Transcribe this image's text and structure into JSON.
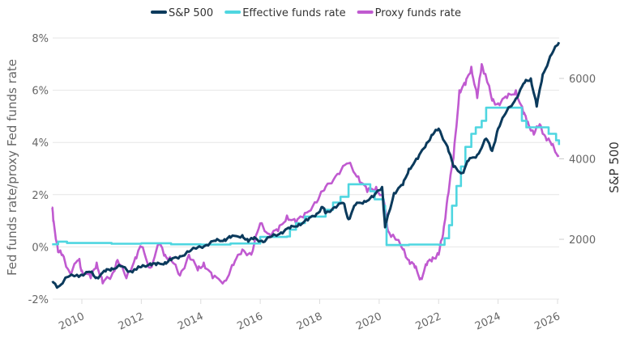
{
  "chart_data": {
    "type": "line",
    "title": "",
    "legend": {
      "placement": "top-center",
      "entries": [
        {
          "name": "S&P 500",
          "color": "#0b3a5c"
        },
        {
          "name": "Effective funds rate",
          "color": "#4fd6e0"
        },
        {
          "name": "Proxy funds rate",
          "color": "#c05ad0"
        }
      ]
    },
    "xlabel": "",
    "ylabel": "Fed funds rate/proxy Fed funds rate",
    "y2label": "S&P 500",
    "xlim": [
      2009.0,
      2026.1
    ],
    "ylim": [
      -2,
      8
    ],
    "y2lim": [
      650,
      7200
    ],
    "x_ticks": [
      "2010",
      "2012",
      "2014",
      "2016",
      "2018",
      "2020",
      "2022",
      "2024",
      "2026"
    ],
    "y_ticks": [
      "-2%",
      "0%",
      "2%",
      "4%",
      "6%",
      "8%"
    ],
    "y2_ticks": [
      "2000",
      "4000",
      "6000"
    ],
    "grid": true,
    "series": [
      {
        "name": "S&P 500",
        "axis": "right",
        "color": "#0b3a5c",
        "x": [
          2009.0,
          2009.2,
          2009.5,
          2009.8,
          2010.0,
          2010.3,
          2010.5,
          2010.8,
          2011.0,
          2011.3,
          2011.6,
          2011.8,
          2012.0,
          2012.3,
          2012.5,
          2012.8,
          2013.0,
          2013.3,
          2013.6,
          2013.9,
          2014.2,
          2014.5,
          2014.8,
          2015.0,
          2015.4,
          2015.6,
          2015.8,
          2016.1,
          2016.4,
          2016.7,
          2017.0,
          2017.3,
          2017.6,
          2017.9,
          2018.1,
          2018.2,
          2018.5,
          2018.8,
          2018.97,
          2019.2,
          2019.5,
          2019.8,
          2020.1,
          2020.2,
          2020.25,
          2020.5,
          2020.8,
          2021.0,
          2021.3,
          2021.6,
          2021.8,
          2022.0,
          2022.3,
          2022.5,
          2022.8,
          2023.0,
          2023.3,
          2023.6,
          2023.8,
          2024.0,
          2024.3,
          2024.6,
          2024.9,
          2025.1,
          2025.3,
          2025.5,
          2025.8,
          2026.05
        ],
        "values": [
          920,
          820,
          1060,
          1100,
          1120,
          1180,
          1050,
          1200,
          1280,
          1330,
          1200,
          1250,
          1310,
          1400,
          1360,
          1430,
          1480,
          1580,
          1690,
          1800,
          1860,
          1960,
          2000,
          2040,
          2100,
          1940,
          2050,
          1930,
          2080,
          2170,
          2270,
          2380,
          2470,
          2640,
          2800,
          2650,
          2800,
          2900,
          2500,
          2850,
          2950,
          3050,
          3300,
          2300,
          2450,
          3150,
          3350,
          3750,
          4000,
          4400,
          4600,
          4750,
          4300,
          3800,
          3650,
          3950,
          4100,
          4500,
          4200,
          4750,
          5200,
          5500,
          5900,
          6000,
          5300,
          6100,
          6600,
          6900
        ]
      },
      {
        "name": "Effective funds rate",
        "axis": "left",
        "color": "#4fd6e0",
        "x": [
          2009.0,
          2009.2,
          2009.5,
          2010.0,
          2011.0,
          2012.0,
          2013.0,
          2014.0,
          2015.0,
          2015.95,
          2016.0,
          2016.9,
          2017.0,
          2017.2,
          2017.5,
          2017.95,
          2018.2,
          2018.45,
          2018.7,
          2018.97,
          2019.55,
          2019.7,
          2019.85,
          2020.15,
          2020.2,
          2020.25,
          2021.0,
          2022.0,
          2022.2,
          2022.35,
          2022.45,
          2022.6,
          2022.75,
          2022.9,
          2023.1,
          2023.25,
          2023.45,
          2023.6,
          2024.2,
          2024.7,
          2024.8,
          2024.95,
          2025.7,
          2025.95,
          2026.05
        ],
        "values": [
          0.1,
          0.2,
          0.15,
          0.15,
          0.12,
          0.14,
          0.1,
          0.09,
          0.13,
          0.13,
          0.38,
          0.4,
          0.66,
          0.91,
          1.16,
          1.16,
          1.42,
          1.7,
          1.92,
          2.4,
          2.4,
          2.13,
          1.82,
          1.58,
          1.0,
          0.07,
          0.09,
          0.08,
          0.33,
          0.83,
          1.58,
          2.33,
          3.08,
          3.83,
          4.33,
          4.58,
          4.83,
          5.33,
          5.33,
          5.33,
          4.83,
          4.58,
          4.33,
          4.08,
          3.9
        ]
      },
      {
        "name": "Proxy funds rate",
        "axis": "left",
        "color": "#c05ad0",
        "x": [
          2009.0,
          2009.05,
          2009.2,
          2009.35,
          2009.6,
          2009.9,
          2010.0,
          2010.3,
          2010.5,
          2010.7,
          2011.0,
          2011.2,
          2011.5,
          2011.8,
          2012.0,
          2012.3,
          2012.6,
          2012.8,
          2013.0,
          2013.3,
          2013.6,
          2013.9,
          2014.1,
          2014.4,
          2014.8,
          2015.1,
          2015.4,
          2015.7,
          2016.0,
          2016.3,
          2016.6,
          2016.9,
          2017.2,
          2017.5,
          2017.9,
          2018.2,
          2018.6,
          2018.97,
          2019.3,
          2019.6,
          2019.9,
          2020.15,
          2020.3,
          2020.5,
          2020.8,
          2021.0,
          2021.2,
          2021.4,
          2021.6,
          2021.8,
          2022.0,
          2022.15,
          2022.3,
          2022.5,
          2022.7,
          2022.9,
          2023.1,
          2023.3,
          2023.45,
          2023.6,
          2023.8,
          2024.0,
          2024.3,
          2024.6,
          2024.85,
          2025.0,
          2025.2,
          2025.4,
          2025.6,
          2025.8,
          2026.05
        ],
        "values": [
          1.5,
          1.0,
          -0.2,
          -0.3,
          -1.0,
          -0.5,
          -0.9,
          -1.2,
          -0.6,
          -1.4,
          -1.1,
          -0.5,
          -1.2,
          -0.4,
          0.0,
          -0.8,
          0.1,
          -0.3,
          -0.5,
          -1.1,
          -0.3,
          -0.9,
          -0.6,
          -1.2,
          -1.3,
          -0.7,
          -0.1,
          -0.3,
          0.9,
          0.5,
          0.6,
          1.2,
          0.9,
          1.3,
          1.7,
          2.3,
          2.8,
          3.2,
          2.7,
          2.1,
          2.3,
          1.8,
          0.6,
          0.4,
          -0.1,
          -0.5,
          -0.8,
          -1.2,
          -0.7,
          -0.4,
          -0.3,
          0.5,
          1.9,
          3.4,
          6.0,
          6.2,
          6.9,
          5.7,
          7.0,
          6.5,
          5.6,
          5.5,
          5.7,
          6.0,
          5.1,
          4.8,
          4.3,
          4.7,
          4.2,
          3.9,
          3.5
        ]
      }
    ]
  }
}
